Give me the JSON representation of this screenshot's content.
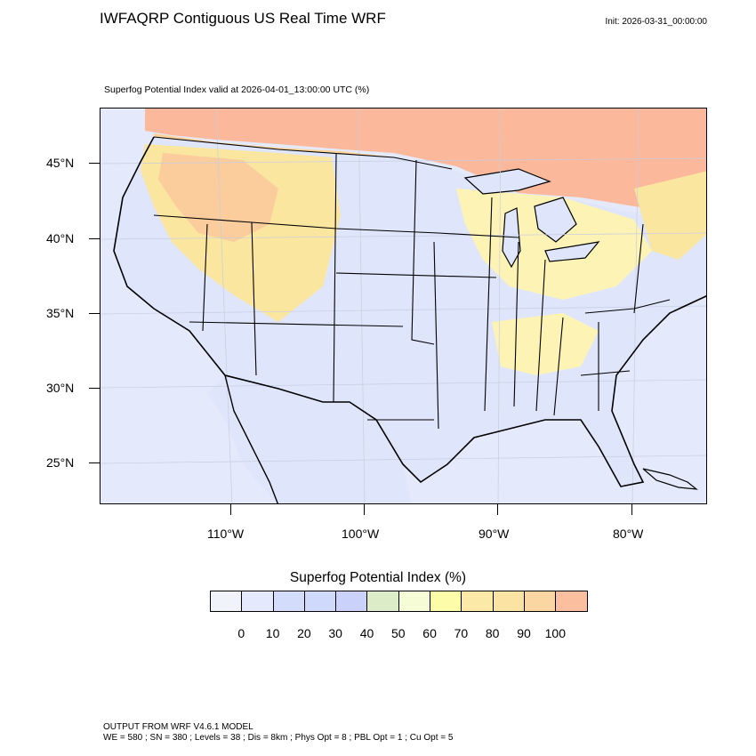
{
  "header": {
    "title": "IWFAQRP Contiguous US Real Time WRF",
    "init": "Init: 2026-03-31_00:00:00",
    "valid": "Superfog Potential Index valid at 2026-04-01_13:00:00 UTC   (%)"
  },
  "map": {
    "lat_labels": [
      "45°N",
      "40°N",
      "35°N",
      "30°N",
      "25°N"
    ],
    "lon_labels": [
      "110°W",
      "100°W",
      "90°W",
      "80°W"
    ],
    "colors": {
      "land_low": "#dfe6fb",
      "ocean": "#e4e9fb",
      "canada_high": "#fbb89a",
      "canada_mid": "#fcd39a",
      "yellow": "#fbe6a0",
      "pale_yellow": "#fdf3b5",
      "green": "#dcebc4",
      "borders": "#000000"
    }
  },
  "legend": {
    "title": "Superfog Potential Index  (%)",
    "colors": [
      "#f0f3fa",
      "#e5e9fd",
      "#d4dcfc",
      "#cfd9fb",
      "#cad2fb",
      "#dcecc8",
      "#f6fcd6",
      "#fdfca8",
      "#fbe9a8",
      "#fbe3a4",
      "#fbd6a3",
      "#fbbfa0"
    ],
    "labels": [
      "0",
      "10",
      "20",
      "30",
      "40",
      "50",
      "60",
      "70",
      "80",
      "90",
      "100"
    ]
  },
  "footer": {
    "line1": "OUTPUT FROM WRF V4.6.1 MODEL",
    "line2": "WE = 580 ; SN = 380 ; Levels = 38 ; Dis = 8km ; Phys Opt = 8 ; PBL Opt = 1 ; Cu Opt = 5"
  }
}
